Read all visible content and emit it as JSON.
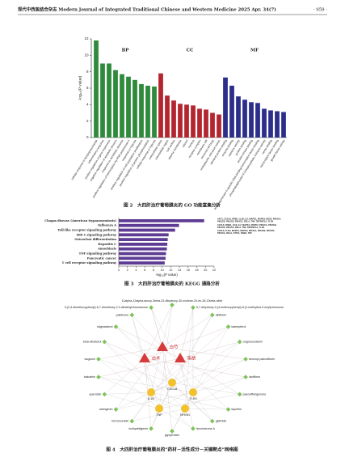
{
  "header": {
    "journal": "现代中西医结合杂志 Modern Journal of Integrated Traditional Chinese and Western Medicine 2025 Apr. 34(7)",
    "page": "· 959 ·"
  },
  "chart_data": [
    {
      "type": "bar",
      "y_label": "-log₁₀(P value)",
      "ylim": [
        0,
        12
      ],
      "yticks": [
        0,
        2,
        4,
        6,
        8,
        10,
        12
      ],
      "series": [
        {
          "name": "BP",
          "color": "#2f8a3c",
          "categories": [
            "cellular response to lipopolysaccharide",
            "inflammatory response",
            "positive regulation of gene expression",
            "negative regulation of apoptotic process",
            "response to xenobiotic stimulus",
            "positive regulation of transcription by RNA polymerase II",
            "response to hypoxia",
            "positive regulation of cell population proliferation",
            "positive regulation of protein phosphorylation",
            "cellular response to hypoxia"
          ],
          "values": [
            11.8,
            9.0,
            9.0,
            8.2,
            7.7,
            7.4,
            7.0,
            6.5,
            6.3,
            6.2
          ]
        },
        {
          "name": "CC",
          "color": "#b32630",
          "categories": [
            "extracellular space",
            "extracellular region",
            "cell surface",
            "plasma membrane",
            "cytosol",
            "nucleus",
            "receptor complex",
            "membrane raft",
            "neuronal cell body",
            "endoplasmic reticulum lumen"
          ],
          "values": [
            7.8,
            5.1,
            4.5,
            4.1,
            4.0,
            3.9,
            3.5,
            3.4,
            3.0,
            2.8
          ]
        },
        {
          "name": "MF",
          "color": "#2b2f8a",
          "categories": [
            "identical protein binding",
            "enzyme binding",
            "cytokine activity",
            "protein binding",
            "protein kinase binding",
            "RNA polymerase II-specific DNA-binding transcription factor binding",
            "phosphatidylinositol-4,5-bisphosphate 3-kinase activity",
            "heme binding",
            "transcription factor binding",
            "growth factor activity"
          ],
          "values": [
            7.3,
            6.3,
            5.0,
            4.6,
            4.3,
            4.2,
            3.5,
            3.3,
            3.2,
            3.1
          ]
        }
      ]
    },
    {
      "type": "barh",
      "x_label": "-log₁₀(P value)",
      "color": "#5e3c94",
      "xlim": [
        0,
        22
      ],
      "xticks": [
        0,
        2,
        4,
        6,
        8,
        10,
        12,
        14,
        16,
        18,
        20,
        22
      ],
      "categories": [
        "Chagas disease (American trypanosomiasis)",
        "Influenza A",
        "Toll-like receptor signaling pathway",
        "HIF-1 signaling pathway",
        "Osteoclast differentiation",
        "Hepatitis C",
        "Amoebiasis",
        "TNF signaling pathway",
        "Pancreatic cancer",
        "T cell receptor signaling pathway"
      ],
      "values": [
        19.7,
        13.9,
        13.0,
        11.5,
        11.3,
        11.2,
        11.1,
        10.9,
        10.8,
        10.6
      ],
      "annotations": [
        [
          "AKT1, CXCL8, IFNB1, IL1B, IL2, MAPK1, MAPK3, NOS2, PIK3CA,",
          "PIK3CB, PIK3CD, PIK3CG, RELA, TNF, TNFRSF1A, TLR4"
        ],
        [
          "CXCL8, IFNB1, IL1B, IL2, MAPK1, MAPK3, PIK3CA, PIK3CB,",
          "PIK3CD, PIK3CG, RELA, TNF, TNFRSF1A, TLR4"
        ],
        [
          "CXCL8, TLR4, MAPK1, MAPK3, PIK3CA, PIK3CB, PIK3CD,",
          "PIK3CG, RELA, STAT1, IFNB1, TNF"
        ]
      ]
    }
  ],
  "network": {
    "herbs": [
      "白芍",
      "白术",
      "柴胡"
    ],
    "compounds": [
      "3-(2,4-dimethoxyphenyl)-6,7-dimethoxy-2,3-dimethylchromanone",
      "11alpha,12alpha-epoxy-3beta-23-dihydroxy-30-oxolean-20-en-28,12beta-olide",
      "5,7-dihydroxy-3-(4-methoxyphenyl)-8-(2-methylbut-2-enyl)chromone",
      "albiflorin",
      "kaempferol",
      "oxypeucedanin",
      "benzoyl paeoniflorin",
      "lactiflorin",
      "paeoniflorigenone",
      "liquiritin",
      "glabridin",
      "licochalcone A",
      "glycyrrhizin",
      "isoliquiritigenin",
      "formononetin",
      "naringenin",
      "quercetin",
      "baicalein",
      "wogonin",
      "beta-sitosterol",
      "stigmasterol",
      "palbinone"
    ],
    "targets": [
      "CXCL8",
      "IL1B",
      "TLR4",
      "TNF",
      "NFKB1"
    ]
  },
  "captions": [
    "图 2　大四肝治疗葡萄膜炎的 GO 功能富集分析",
    "图 3　大四肝治疗葡萄膜炎的 KEGG 通路分析",
    "图 4　大四肝治疗葡萄膜炎的“药材－活性成分－关键靶点”网络图"
  ]
}
